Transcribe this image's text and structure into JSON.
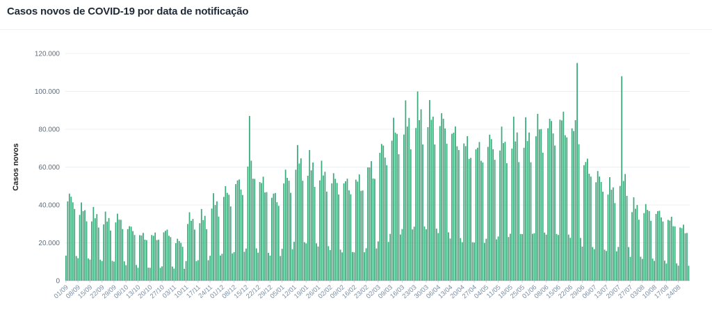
{
  "header": {
    "title": "Casos novos de COVID-19 por data de notificação"
  },
  "chart_data": {
    "type": "bar",
    "title": "Casos novos de COVID-19 por data de notificação",
    "ylabel": "Casos novos",
    "xlabel": "",
    "ylim": [
      0,
      120000
    ],
    "y_ticks": [
      0,
      20000,
      40000,
      60000,
      80000,
      100000,
      120000
    ],
    "y_tick_labels": [
      "0",
      "20.000",
      "40.000",
      "60.000",
      "80.000",
      "100.000",
      "120.000"
    ],
    "x_tick_labels": [
      "01/09",
      "08/09",
      "15/09",
      "22/09",
      "29/09",
      "06/10",
      "13/10",
      "20/10",
      "27/10",
      "03/11",
      "10/11",
      "17/11",
      "24/11",
      "01/12",
      "08/12",
      "15/12",
      "22/12",
      "29/12",
      "05/01",
      "12/01",
      "19/01",
      "26/01",
      "02/02",
      "09/02",
      "16/02",
      "23/02",
      "02/03",
      "09/03",
      "16/03",
      "23/03",
      "30/03",
      "06/04",
      "13/04",
      "20/04",
      "27/04",
      "04/05",
      "11/05",
      "18/05",
      "25/05",
      "01/06",
      "08/06",
      "15/06",
      "22/06",
      "29/06",
      "06/07",
      "13/07",
      "20/07",
      "27/07",
      "03/08",
      "10/08",
      "17/08",
      "24/08"
    ],
    "x_tick_interval_bars": 7,
    "bar_color": "#3daa7c",
    "grid": true,
    "legend": "none",
    "weekly_pattern": [
      0.3,
      0.95,
      1.05,
      1.0,
      0.95,
      0.85,
      0.3
    ],
    "weekly_level": [
      44000,
      38000,
      35000,
      33000,
      33000,
      28000,
      24000,
      24000,
      26000,
      21000,
      33000,
      34000,
      42000,
      47000,
      52000,
      60000,
      52000,
      45000,
      55000,
      65000,
      62000,
      58000,
      54000,
      52000,
      53000,
      60000,
      70000,
      80000,
      86000,
      90000,
      88000,
      85000,
      78000,
      72000,
      70000,
      74000,
      75000,
      78000,
      78000,
      82000,
      83000,
      85000,
      80000,
      62000,
      55000,
      50000,
      56000,
      40000,
      38000,
      36000,
      32000,
      28000
    ],
    "spikes": {
      "107": 87000,
      "298": 115000,
      "324": 108000
    }
  }
}
